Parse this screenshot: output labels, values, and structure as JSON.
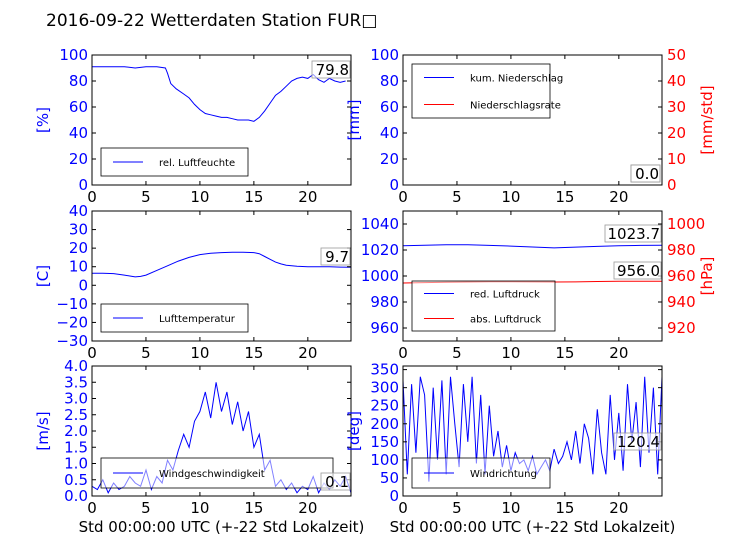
{
  "figure_title": "2016-09-22 Wetterdaten Station FUR□",
  "colors": {
    "blue": "#0000ff",
    "red": "#ff0000",
    "black": "#000000",
    "gray": "#808080"
  },
  "chart_data": [
    {
      "id": "humidity",
      "type": "line",
      "ylabel": "[%]",
      "ylim": [
        0,
        100
      ],
      "yticks": [
        "0",
        "20",
        "40",
        "60",
        "80",
        "100"
      ],
      "xlim": [
        0,
        24
      ],
      "xticks": [
        "0",
        "5",
        "10",
        "15",
        "20"
      ],
      "xlabel": "",
      "series": [
        {
          "name": "rel. Luftfeuchte",
          "color": "#0000ff",
          "x": [
            0,
            1,
            2,
            3,
            4,
            5,
            6,
            6.8,
            7,
            7.3,
            7.8,
            8.5,
            9,
            9.5,
            10,
            10.5,
            11,
            11.5,
            12,
            12.5,
            13,
            13.5,
            14,
            14.5,
            15,
            15.5,
            16,
            16.5,
            17,
            17.5,
            18,
            18.5,
            19,
            19.5,
            20,
            20.5,
            21,
            21.5,
            22,
            22.5,
            23,
            23.5
          ],
          "y": [
            91,
            91,
            91,
            91,
            90,
            91,
            91,
            90,
            86,
            78,
            74,
            70,
            67,
            62,
            58,
            55,
            54,
            53,
            52,
            52,
            51,
            50,
            50,
            50,
            49,
            52,
            57,
            63,
            69,
            72,
            76,
            80,
            82,
            83,
            82,
            85,
            81,
            79,
            82,
            80,
            79,
            80
          ]
        }
      ],
      "annotation": "79.8"
    },
    {
      "id": "precipitation",
      "type": "line",
      "ylabel": "[mm]",
      "ylim": [
        0,
        100
      ],
      "yticks": [
        "0",
        "20",
        "40",
        "60",
        "80",
        "100"
      ],
      "ylabel_right": "[mm/std]",
      "ylim_right": [
        0,
        50
      ],
      "yticks_right": [
        "0",
        "10",
        "20",
        "30",
        "40",
        "50"
      ],
      "xlim": [
        0,
        24
      ],
      "xticks": [
        "0",
        "5",
        "10",
        "15",
        "20"
      ],
      "xlabel": "",
      "series": [
        {
          "name": "kum. Niederschlag",
          "color": "#0000ff",
          "x": [
            0,
            24
          ],
          "y": [
            0,
            0
          ]
        },
        {
          "name": "Niederschlagsrate",
          "color": "#ff0000",
          "x": [
            0,
            24
          ],
          "y": [
            0,
            0
          ],
          "axis": "right"
        }
      ],
      "annotations": [
        "0.0",
        "0.0"
      ]
    },
    {
      "id": "temperature",
      "type": "line",
      "ylabel": "[C]",
      "ylim": [
        -30,
        40
      ],
      "yticks": [
        "−30",
        "−20",
        "−10",
        "0",
        "10",
        "20",
        "30",
        "40"
      ],
      "xlim": [
        0,
        24
      ],
      "xticks": [
        "0",
        "5",
        "10",
        "15",
        "20"
      ],
      "xlabel": "",
      "series": [
        {
          "name": "Lufttemperatur",
          "color": "#0000ff",
          "x": [
            0,
            1,
            2,
            3,
            3.5,
            4,
            4.5,
            5,
            6,
            7,
            8,
            9,
            10,
            11,
            12,
            13,
            14,
            15,
            15.5,
            16,
            16.5,
            17,
            17.5,
            18,
            19,
            20,
            21,
            22,
            23,
            24
          ],
          "y": [
            6.5,
            6.5,
            6.3,
            5.5,
            5,
            4.5,
            4.8,
            5.5,
            8,
            10.5,
            13,
            15,
            16.5,
            17.3,
            17.6,
            17.8,
            17.8,
            17.6,
            17,
            15.5,
            14,
            12.5,
            11.5,
            10.8,
            10.2,
            10,
            10,
            10,
            9.8,
            9.7
          ]
        }
      ],
      "annotation": "9.7"
    },
    {
      "id": "pressure",
      "type": "line",
      "ylabel": "",
      "ylim": [
        950,
        1050
      ],
      "yticks": [
        "960",
        "980",
        "1000",
        "1020",
        "1040"
      ],
      "ylabel_right": "[hPa]",
      "ylim_right": [
        910,
        1010
      ],
      "yticks_right": [
        "920",
        "940",
        "960",
        "980",
        "1000"
      ],
      "xlim": [
        0,
        24
      ],
      "xticks": [
        "0",
        "5",
        "10",
        "15",
        "20"
      ],
      "xlabel": "",
      "series": [
        {
          "name": "red. Luftdruck",
          "color": "#0000ff",
          "x": [
            0,
            2,
            4,
            6,
            8,
            10,
            12,
            14,
            16,
            18,
            20,
            22,
            24
          ],
          "y": [
            1023.2,
            1023.6,
            1024,
            1024,
            1023.5,
            1023,
            1022.3,
            1021.6,
            1022.2,
            1022.8,
            1023.2,
            1023.5,
            1023.7
          ]
        },
        {
          "name": "abs. Luftdruck",
          "color": "#ff0000",
          "axis": "right",
          "x": [
            0,
            2,
            4,
            6,
            8,
            10,
            12,
            14,
            16,
            18,
            20,
            22,
            24
          ],
          "y": [
            954.6,
            954.9,
            955.2,
            955.4,
            955.6,
            955.6,
            955.5,
            955.4,
            955.5,
            955.8,
            956,
            956,
            956
          ]
        }
      ],
      "annotations": [
        "1023.7",
        "956.0"
      ]
    },
    {
      "id": "windspeed",
      "type": "line",
      "ylabel": "[m/s]",
      "ylim": [
        0,
        4
      ],
      "yticks": [
        "0.0",
        "0.5",
        "1.0",
        "1.5",
        "2.0",
        "2.5",
        "3.0",
        "3.5",
        "4.0"
      ],
      "xlim": [
        0,
        24
      ],
      "xticks": [
        "0",
        "5",
        "10",
        "15",
        "20"
      ],
      "xlabel": "Std 00:00:00 UTC (+-22 Std Lokalzeit)",
      "series": [
        {
          "name": "Windgeschwindigkeit",
          "color": "#0000ff",
          "x": [
            0,
            0.5,
            1,
            1.5,
            2,
            2.5,
            3,
            3.5,
            4,
            4.5,
            5,
            5.5,
            6,
            6.5,
            7,
            7.5,
            8,
            8.5,
            9,
            9.5,
            10,
            10.5,
            11,
            11.5,
            12,
            12.5,
            13,
            13.5,
            14,
            14.5,
            15,
            15.5,
            16,
            16.5,
            17,
            17.5,
            18,
            18.5,
            19,
            19.5,
            20,
            20.5,
            21,
            21.5,
            22,
            22.5,
            23,
            23.5,
            24
          ],
          "y": [
            0.3,
            0.2,
            0.5,
            0.1,
            0.4,
            0.2,
            0.3,
            0.6,
            0.4,
            0.3,
            0.8,
            0.2,
            0.6,
            0.4,
            1.1,
            0.8,
            1.4,
            1.9,
            1.5,
            2.3,
            2.6,
            3.2,
            2.4,
            3.5,
            2.6,
            3.2,
            2.2,
            2.9,
            2.0,
            2.6,
            1.5,
            1.9,
            0.8,
            1.1,
            0.3,
            0.5,
            0.2,
            0.4,
            0.1,
            0.3,
            0.2,
            0.6,
            0.1,
            0.4,
            0.2,
            0.5,
            0.3,
            0.6,
            0.1
          ]
        }
      ],
      "annotation": "0.1"
    },
    {
      "id": "winddirection",
      "type": "line",
      "ylabel": "[deg]",
      "ylim": [
        0,
        360
      ],
      "yticks": [
        "0",
        "50",
        "100",
        "150",
        "200",
        "250",
        "300",
        "350"
      ],
      "xlim": [
        0,
        24
      ],
      "xticks": [
        "0",
        "5",
        "10",
        "15",
        "20"
      ],
      "xlabel": "Std 00:00:00 UTC (+-22 Std Lokalzeit)",
      "series": [
        {
          "name": "Windrichtung",
          "color": "#0000ff",
          "x": [
            0,
            0.4,
            0.8,
            1.2,
            1.6,
            2,
            2.4,
            2.8,
            3.2,
            3.6,
            4,
            4.4,
            4.8,
            5.2,
            5.6,
            6,
            6.4,
            6.8,
            7.2,
            7.6,
            8,
            8.4,
            8.8,
            9.2,
            9.6,
            10,
            10.4,
            10.8,
            11.2,
            11.6,
            12,
            12.4,
            12.8,
            13.2,
            13.6,
            14,
            14.4,
            14.8,
            15.2,
            15.6,
            16,
            16.4,
            16.8,
            17.2,
            17.6,
            18,
            18.4,
            18.8,
            19.2,
            19.6,
            20,
            20.4,
            20.8,
            21.2,
            21.6,
            22,
            22.4,
            22.8,
            23.2,
            23.6,
            24
          ],
          "y": [
            320,
            60,
            310,
            120,
            330,
            280,
            40,
            300,
            100,
            320,
            60,
            330,
            200,
            80,
            310,
            150,
            330,
            90,
            280,
            60,
            250,
            110,
            180,
            80,
            140,
            70,
            120,
            90,
            100,
            70,
            110,
            60,
            80,
            100,
            70,
            130,
            90,
            110,
            150,
            100,
            180,
            90,
            200,
            160,
            60,
            240,
            120,
            60,
            280,
            100,
            230,
            70,
            310,
            150,
            260,
            80,
            330,
            120,
            300,
            60,
            330
          ]
        }
      ],
      "annotation": "120.4"
    }
  ]
}
